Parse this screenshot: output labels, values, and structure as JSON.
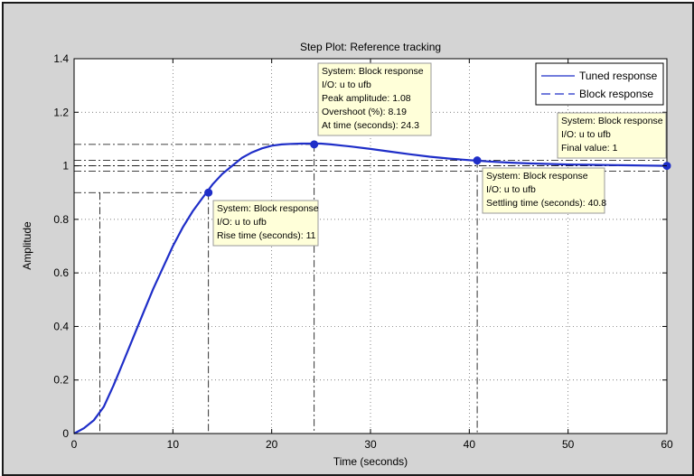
{
  "chart_data": {
    "type": "line",
    "title": "Step Plot: Reference tracking",
    "xlabel": "Time (seconds)",
    "ylabel": "Amplitude",
    "xlim": [
      0,
      60
    ],
    "ylim": [
      0,
      1.4
    ],
    "x_ticks": [
      "0",
      "10",
      "20",
      "30",
      "40",
      "50",
      "60"
    ],
    "y_ticks": [
      "0",
      "0.2",
      "0.4",
      "0.6",
      "0.8",
      "1",
      "1.2",
      "1.4"
    ],
    "grid": true,
    "legend_position": "top-right",
    "series": [
      {
        "name": "Tuned response",
        "style": "solid",
        "color": "#1f2ec8",
        "x": [
          0,
          1,
          2,
          3,
          4,
          5,
          6,
          7,
          8,
          9,
          10,
          11,
          12,
          13,
          14,
          15,
          16,
          17,
          18,
          19,
          20,
          21,
          22,
          23,
          24,
          25,
          26,
          28,
          30,
          32,
          34,
          36,
          38,
          40,
          42,
          44,
          46,
          48,
          50,
          52,
          54,
          56,
          58,
          60
        ],
        "y": [
          0,
          0.02,
          0.05,
          0.1,
          0.18,
          0.27,
          0.36,
          0.45,
          0.54,
          0.62,
          0.7,
          0.77,
          0.83,
          0.88,
          0.93,
          0.97,
          1.0,
          1.03,
          1.05,
          1.065,
          1.075,
          1.08,
          1.082,
          1.083,
          1.083,
          1.083,
          1.08,
          1.072,
          1.063,
          1.053,
          1.043,
          1.034,
          1.027,
          1.021,
          1.016,
          1.012,
          1.009,
          1.007,
          1.005,
          1.004,
          1.003,
          1.002,
          1.001,
          1.0
        ]
      },
      {
        "name": "Block response",
        "style": "dashed",
        "color": "#1f2ec8",
        "x": [
          0,
          1,
          2,
          3,
          4,
          5,
          6,
          7,
          8,
          9,
          10,
          11,
          12,
          13,
          14,
          15,
          16,
          17,
          18,
          19,
          20,
          21,
          22,
          23,
          24,
          25,
          26,
          28,
          30,
          32,
          34,
          36,
          38,
          40,
          42,
          44,
          46,
          48,
          50,
          52,
          54,
          56,
          58,
          60
        ],
        "y": [
          0,
          0.02,
          0.05,
          0.1,
          0.18,
          0.27,
          0.36,
          0.45,
          0.54,
          0.62,
          0.7,
          0.77,
          0.83,
          0.88,
          0.93,
          0.97,
          1.0,
          1.03,
          1.05,
          1.065,
          1.075,
          1.08,
          1.082,
          1.083,
          1.083,
          1.083,
          1.08,
          1.072,
          1.063,
          1.053,
          1.043,
          1.034,
          1.027,
          1.021,
          1.016,
          1.012,
          1.009,
          1.007,
          1.005,
          1.004,
          1.003,
          1.002,
          1.001,
          1.0
        ]
      }
    ],
    "markers": [
      {
        "x": 13.6,
        "y": 0.9
      },
      {
        "x": 24.3,
        "y": 1.08
      },
      {
        "x": 40.8,
        "y": 1.02
      },
      {
        "x": 60,
        "y": 1.0
      }
    ],
    "ref_lines_y": [
      0.9,
      0.98,
      1.0,
      1.02,
      1.08
    ],
    "ref_lines_x": [
      2.6,
      13.6,
      24.3,
      40.8
    ],
    "annotations": [
      {
        "lines": [
          "System: Block response",
          "I/O: u to ufb",
          "Peak amplitude: 1.08",
          "Overshoot (%): 8.19",
          "At time (seconds): 24.3"
        ]
      },
      {
        "lines": [
          "System: Block response",
          "I/O: u to ufb",
          "Final value: 1"
        ]
      },
      {
        "lines": [
          "System: Block response",
          "I/O: u to ufb",
          "Settling time (seconds): 40.8"
        ]
      },
      {
        "lines": [
          "System: Block response",
          "I/O: u to ufb",
          "Rise time (seconds): 11"
        ]
      }
    ]
  }
}
